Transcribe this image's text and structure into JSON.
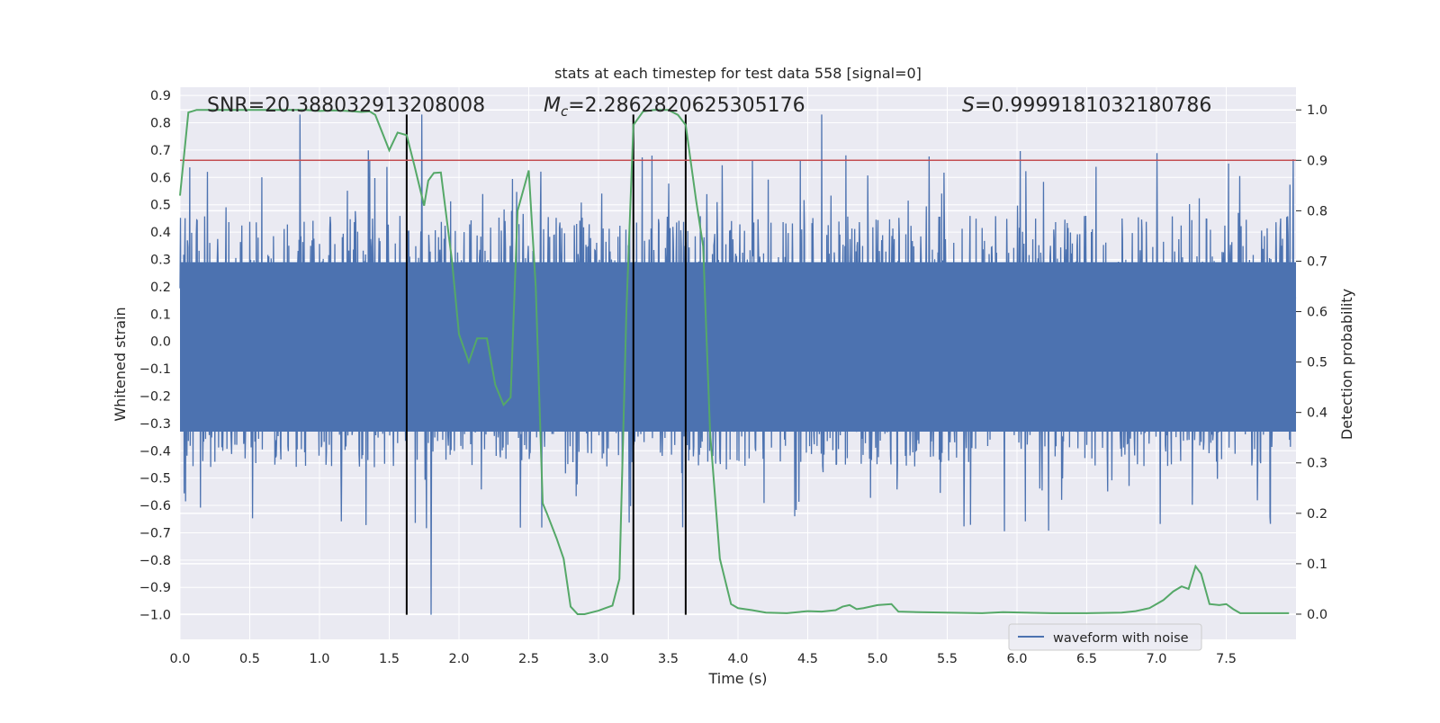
{
  "chart_data": {
    "type": "line",
    "title": "stats at each timestep for test data 558 [signal=0]",
    "xlabel": "Time (s)",
    "ylabel": "Whitened strain",
    "y2label": "Detection probability",
    "xlim": [
      0.0,
      8.0
    ],
    "ylim": [
      -1.09,
      0.93
    ],
    "y2lim": [
      -0.05,
      1.045
    ],
    "x_ticks": [
      "0.0",
      "0.5",
      "1.0",
      "1.5",
      "2.0",
      "2.5",
      "3.0",
      "3.5",
      "4.0",
      "4.5",
      "5.0",
      "5.5",
      "6.0",
      "6.5",
      "7.0",
      "7.5"
    ],
    "y_ticks": [
      "0.9",
      "0.8",
      "0.7",
      "0.6",
      "0.5",
      "0.4",
      "0.3",
      "0.2",
      "0.1",
      "0.0",
      "−0.1",
      "−0.2",
      "−0.3",
      "−0.4",
      "−0.5",
      "−0.6",
      "−0.7",
      "−0.8",
      "−0.9",
      "−1.0"
    ],
    "y2_ticks": [
      "1.0",
      "0.9",
      "0.8",
      "0.7",
      "0.6",
      "0.5",
      "0.4",
      "0.3",
      "0.2",
      "0.1",
      "0.0"
    ],
    "grid": true,
    "legend": {
      "placement": "lower-right",
      "entries": [
        "waveform with noise"
      ]
    },
    "annotations": {
      "snr": "SNR=20.388032913208008",
      "mc_symbol": "M",
      "mc_sub": "c",
      "mc_value": "=2.2862820625305176",
      "s_symbol": "S",
      "s_value": "=0.9999181032180786"
    },
    "waveform": {
      "name": "waveform with noise",
      "color": "#4c72b0",
      "duration_s": 8.0,
      "typical_range": [
        -0.45,
        0.46
      ],
      "max": 0.83,
      "min": -1.0
    },
    "threshold": {
      "y2": 0.9,
      "color": "#c44e52"
    },
    "vlines": {
      "x": [
        1.625,
        3.25,
        3.625
      ],
      "color": "#000000"
    },
    "detection_probability": {
      "color": "#55a868",
      "x": [
        0.0,
        0.06,
        0.12,
        0.2,
        0.3,
        0.4,
        0.5,
        0.6,
        0.7,
        0.8,
        0.9,
        1.0,
        1.1,
        1.2,
        1.3,
        1.36,
        1.4,
        1.5,
        1.56,
        1.625,
        1.68,
        1.75,
        1.78,
        1.82,
        1.87,
        1.95,
        2.0,
        2.07,
        2.13,
        2.2,
        2.26,
        2.32,
        2.37,
        2.42,
        2.5,
        2.55,
        2.6,
        2.63,
        2.7,
        2.75,
        2.8,
        2.85,
        2.9,
        3.0,
        3.05,
        3.1,
        3.15,
        3.2,
        3.25,
        3.32,
        3.4,
        3.5,
        3.57,
        3.625,
        3.7,
        3.75,
        3.8,
        3.87,
        3.95,
        4.0,
        4.1,
        4.2,
        4.35,
        4.5,
        4.6,
        4.7,
        4.75,
        4.8,
        4.85,
        4.9,
        5.0,
        5.1,
        5.15,
        5.3,
        5.5,
        5.75,
        5.9,
        6.05,
        6.25,
        6.5,
        6.75,
        6.85,
        6.95,
        7.0,
        7.05,
        7.12,
        7.18,
        7.23,
        7.28,
        7.32,
        7.38,
        7.45,
        7.5,
        7.55,
        7.6,
        7.75,
        7.95
      ],
      "y": [
        0.83,
        0.995,
        1.0,
        1.0,
        1.0,
        1.0,
        1.0,
        1.0,
        1.0,
        1.0,
        1.0,
        0.998,
        0.999,
        0.998,
        0.996,
        0.997,
        0.99,
        0.92,
        0.955,
        0.95,
        0.89,
        0.81,
        0.86,
        0.875,
        0.876,
        0.7,
        0.555,
        0.5,
        0.547,
        0.547,
        0.455,
        0.415,
        0.43,
        0.8,
        0.88,
        0.65,
        0.22,
        0.2,
        0.15,
        0.11,
        0.015,
        0.0,
        0.0,
        0.007,
        0.012,
        0.017,
        0.07,
        0.6,
        0.97,
        0.997,
        1.0,
        1.0,
        0.99,
        0.97,
        0.82,
        0.73,
        0.36,
        0.11,
        0.02,
        0.012,
        0.008,
        0.003,
        0.002,
        0.006,
        0.005,
        0.008,
        0.015,
        0.018,
        0.01,
        0.012,
        0.018,
        0.02,
        0.005,
        0.004,
        0.003,
        0.002,
        0.004,
        0.003,
        0.002,
        0.002,
        0.003,
        0.006,
        0.012,
        0.02,
        0.028,
        0.045,
        0.055,
        0.05,
        0.095,
        0.08,
        0.02,
        0.018,
        0.02,
        0.01,
        0.002,
        0.002,
        0.002
      ]
    }
  }
}
